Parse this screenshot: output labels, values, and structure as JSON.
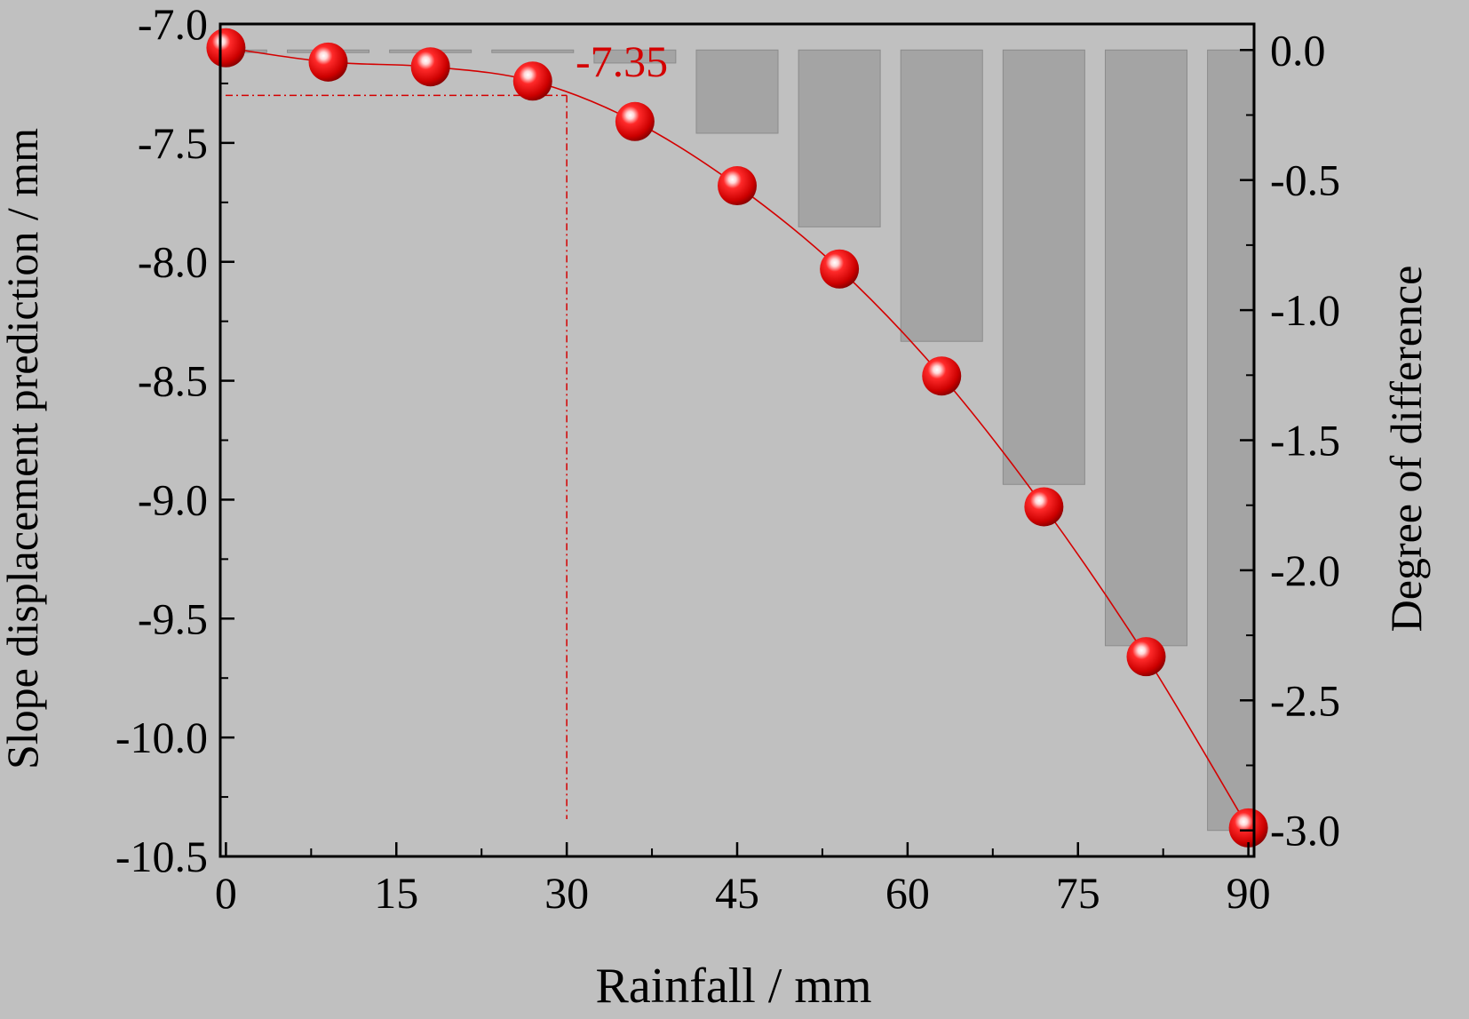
{
  "chart_data": {
    "type": "bar+line",
    "title": "",
    "xlabel": "Rainfall / mm",
    "ylabel_left": "Slope displacement prediction / mm",
    "ylabel_right": "Degree of difference",
    "xlim": [
      -0.5,
      90.5
    ],
    "ylim_left": [
      -10.5,
      -7.0
    ],
    "ylim_right": [
      -3.1,
      0.1
    ],
    "x_ticks": [
      "0",
      "15",
      "30",
      "45",
      "60",
      "75",
      "90"
    ],
    "x_tick_values": [
      0,
      15,
      30,
      45,
      60,
      75,
      90
    ],
    "y_left_ticks": [
      "-7.0",
      "-7.5",
      "-8.0",
      "-8.5",
      "-9.0",
      "-9.5",
      "-10.0",
      "-10.5"
    ],
    "y_left_tick_values": [
      -7.0,
      -7.5,
      -8.0,
      -8.5,
      -9.0,
      -9.5,
      -10.0,
      -10.5
    ],
    "y_right_ticks": [
      "0.0",
      "-0.5",
      "-1.0",
      "-1.5",
      "-2.0",
      "-2.5",
      "-3.0"
    ],
    "y_right_tick_values": [
      0.0,
      -0.5,
      -1.0,
      -1.5,
      -2.0,
      -2.5,
      -3.0
    ],
    "series": [
      {
        "name": "",
        "type": "line-markers",
        "axis": "left",
        "color": "#d40000",
        "x": [
          0,
          9,
          18,
          27,
          36,
          45,
          54,
          63,
          72,
          81,
          90
        ],
        "y": [
          -7.1,
          -7.16,
          -7.18,
          -7.24,
          -7.41,
          -7.68,
          -8.03,
          -8.48,
          -9.03,
          -9.66,
          -10.38
        ]
      },
      {
        "name": "",
        "type": "bar",
        "axis": "right",
        "color": "#a4a4a4",
        "x": [
          0,
          9,
          18,
          27,
          36,
          45,
          54,
          63,
          72,
          81,
          90
        ],
        "y": [
          -0.01,
          -0.01,
          -0.01,
          -0.01,
          -0.05,
          -0.32,
          -0.68,
          -1.12,
          -1.67,
          -2.29,
          -3.0
        ]
      }
    ],
    "annotation": {
      "text": "-7.35",
      "x": 30,
      "y": -7.3,
      "color": "#d40000"
    },
    "grid": false,
    "legend": "none"
  }
}
